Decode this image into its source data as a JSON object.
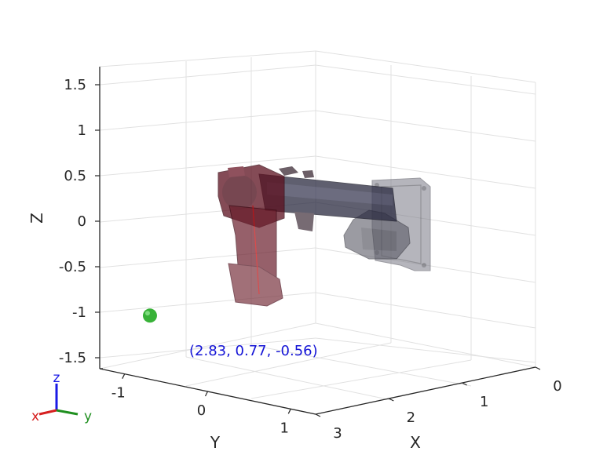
{
  "chart_data": {
    "type": "scatter",
    "title": "",
    "projection": "3d",
    "grid": true,
    "axes": {
      "x": {
        "label": "X",
        "ticks": [
          "0",
          "1",
          "2",
          "3"
        ],
        "lim": [
          0,
          3
        ]
      },
      "y": {
        "label": "Y",
        "ticks": [
          "-1",
          "0",
          "1"
        ],
        "lim": [
          -1.3,
          1.3
        ]
      },
      "z": {
        "label": "Z",
        "ticks": [
          "1.5",
          "1",
          "0.5",
          "0",
          "-0.5",
          "-1",
          "-1.5"
        ],
        "lim": [
          -1.5,
          1.5
        ]
      }
    },
    "points": [
      {
        "x": 2.83,
        "y": 0.77,
        "z": -0.56,
        "marker": "sphere",
        "color": "#22aa22",
        "label": "(2.83, 0.77, -0.56)"
      }
    ],
    "annotation": {
      "text": "(2.83, 0.77, -0.56)",
      "color": "#1414d6"
    },
    "triad": {
      "x": "x",
      "y": "y",
      "z": "z",
      "x_color": "#d62020",
      "y_color": "#1f8f1f",
      "z_color": "#1a1ae6"
    },
    "model_colors": {
      "upper_body": "#5c0f1e",
      "arm": "#2a2a40",
      "mount_plate": "#7a7a86",
      "gripper": "#5a5a66"
    }
  }
}
